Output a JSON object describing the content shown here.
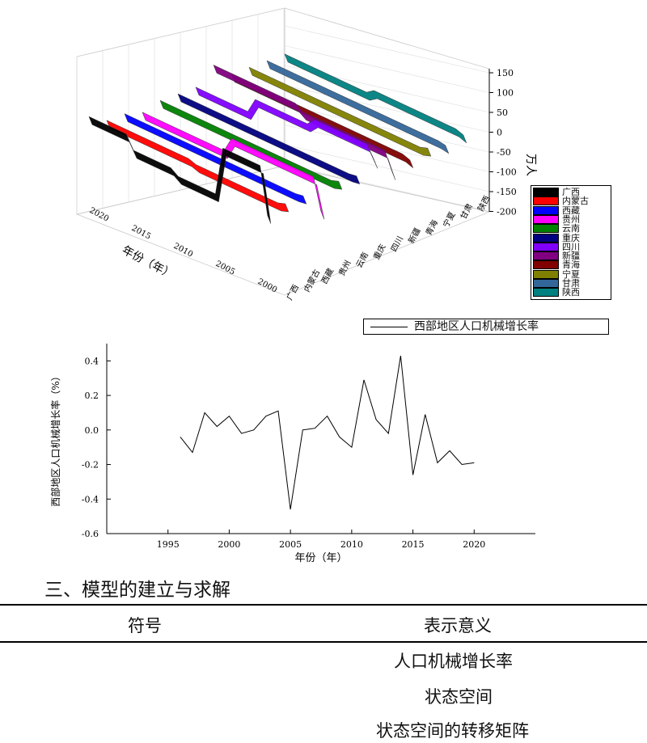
{
  "chart_data": [
    {
      "type": "3d-ribbon",
      "zlabel": "万人",
      "xlabel": "年份（年）",
      "year_ticks": [
        "2020",
        "2015",
        "2010",
        "2005",
        "2000"
      ],
      "z_ticks": [
        "150",
        "100",
        "50",
        "0",
        "-50",
        "-100",
        "-150",
        "-200"
      ],
      "zlim": [
        -200,
        150
      ],
      "region_ticks": [
        "广西",
        "内蒙古",
        "西藏",
        "贵州",
        "云南",
        "重庆",
        "四川",
        "新疆",
        "青海",
        "宁夏",
        "甘肃",
        "陕西"
      ],
      "legend": [
        {
          "name": "广西",
          "color": "#000000"
        },
        {
          "name": "内蒙古",
          "color": "#ff0000"
        },
        {
          "name": "西藏",
          "color": "#0000ff"
        },
        {
          "name": "贵州",
          "color": "#ff00ff"
        },
        {
          "name": "云南",
          "color": "#008000"
        },
        {
          "name": "重庆",
          "color": "#000080"
        },
        {
          "name": "四川",
          "color": "#8000ff"
        },
        {
          "name": "新疆",
          "color": "#800080"
        },
        {
          "name": "青海",
          "color": "#800000"
        },
        {
          "name": "宁夏",
          "color": "#808000"
        },
        {
          "name": "甘肃",
          "color": "#336699"
        },
        {
          "name": "陕西",
          "color": "#008080"
        }
      ]
    },
    {
      "type": "line",
      "legend_label": "西部地区人口机械增长率",
      "xlabel": "年份（年）",
      "ylabel": "西部地区人口机械增长率（%）",
      "xlim": [
        1990,
        2025
      ],
      "ylim": [
        -0.6,
        0.5
      ],
      "x_ticks": [
        1995,
        2000,
        2005,
        2010,
        2015,
        2020
      ],
      "y_ticks": [
        0.4,
        0.2,
        0.0,
        -0.2,
        -0.4,
        -0.6
      ],
      "y_tick_labels": [
        "0.4",
        "0.2",
        "0.0",
        "-0.2",
        "-0.4",
        "-0.6"
      ],
      "x": [
        1996,
        1997,
        1998,
        1999,
        2000,
        2001,
        2002,
        2003,
        2004,
        2005,
        2006,
        2007,
        2008,
        2009,
        2010,
        2011,
        2012,
        2013,
        2014,
        2015,
        2016,
        2017,
        2018,
        2019,
        2020
      ],
      "y": [
        -0.04,
        -0.13,
        0.1,
        0.02,
        0.08,
        -0.02,
        0.0,
        0.08,
        0.11,
        -0.46,
        0.0,
        0.01,
        0.08,
        -0.04,
        -0.1,
        0.29,
        0.06,
        -0.02,
        0.43,
        -0.26,
        0.09,
        -0.19,
        -0.12,
        -0.2,
        -0.19
      ]
    }
  ],
  "section": {
    "heading": "三、模型的建立与求解"
  },
  "table": {
    "headers": [
      "符号",
      "表示意义"
    ],
    "rows": [
      {
        "meaning": "人口机械增长率"
      },
      {
        "meaning": "状态空间"
      },
      {
        "meaning": "状态空间的转移矩阵"
      }
    ]
  }
}
